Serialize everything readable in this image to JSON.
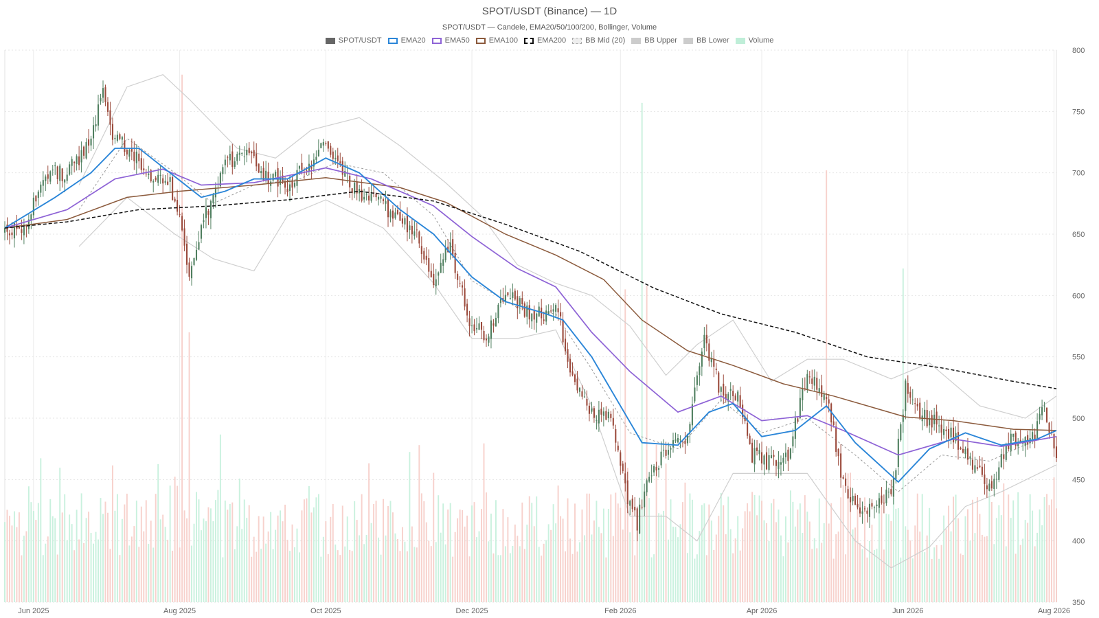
{
  "chart_data": {
    "type": "candlestick",
    "title": "SPOT/USDT (Binance) — 1D",
    "subtitle": "SPOT/USDT — Candele, EMA20/50/100/200, Bollinger, Volume",
    "legend_placement": "top-center",
    "legend": [
      {
        "label": "SPOT/USDT",
        "color": "#666666",
        "style": "solid-fill"
      },
      {
        "label": "EMA20",
        "color": "#2b86d8",
        "style": "outline"
      },
      {
        "label": "EMA50",
        "color": "#8e63d6",
        "style": "outline"
      },
      {
        "label": "EMA100",
        "color": "#8b5a3c",
        "style": "outline"
      },
      {
        "label": "EMA200",
        "color": "#111111",
        "style": "dashed"
      },
      {
        "label": "BB Mid (20)",
        "color": "#aaaaaa",
        "style": "dotted"
      },
      {
        "label": "BB Upper",
        "color": "#cccccc",
        "style": "solid-fill"
      },
      {
        "label": "BB Lower",
        "color": "#cccccc",
        "style": "solid-fill"
      },
      {
        "label": "Volume",
        "color": "#bfeed8",
        "style": "solid-fill"
      }
    ],
    "x_axis": {
      "type": "date",
      "range": [
        "2025-05-20",
        "2026-08-02"
      ],
      "ticks": [
        {
          "date": "2025-06-01",
          "label": "Jun 2025"
        },
        {
          "date": "2025-08-01",
          "label": "Aug 2025"
        },
        {
          "date": "2025-10-01",
          "label": "Oct 2025"
        },
        {
          "date": "2025-12-01",
          "label": "Dec 2025"
        },
        {
          "date": "2026-02-01",
          "label": "Feb 2026"
        },
        {
          "date": "2026-04-01",
          "label": "Apr 2026"
        },
        {
          "date": "2026-06-01",
          "label": "Jun 2026"
        },
        {
          "date": "2026-08-01",
          "label": "Aug 2026"
        }
      ]
    },
    "y_axis": {
      "position": "right",
      "range": [
        350,
        800
      ],
      "ticks": [
        350,
        400,
        450,
        500,
        550,
        600,
        650,
        700,
        750,
        800
      ]
    },
    "grid": true,
    "colors": {
      "up": "#4f7f5f",
      "down": "#9b4a3c",
      "volume_up": "#bfeed8",
      "volume_down": "#f6c9c3"
    },
    "price_path": [
      [
        "2025-05-20",
        655
      ],
      [
        "2025-05-28",
        650
      ],
      [
        "2025-06-05",
        700
      ],
      [
        "2025-06-15",
        700
      ],
      [
        "2025-06-25",
        725
      ],
      [
        "2025-06-30",
        775
      ],
      [
        "2025-07-03",
        735
      ],
      [
        "2025-07-10",
        720
      ],
      [
        "2025-07-20",
        700
      ],
      [
        "2025-07-28",
        690
      ],
      [
        "2025-08-01",
        660
      ],
      [
        "2025-08-05",
        620
      ],
      [
        "2025-08-12",
        665
      ],
      [
        "2025-08-20",
        705
      ],
      [
        "2025-08-28",
        720
      ],
      [
        "2025-09-05",
        700
      ],
      [
        "2025-09-15",
        690
      ],
      [
        "2025-09-25",
        710
      ],
      [
        "2025-10-02",
        725
      ],
      [
        "2025-10-08",
        700
      ],
      [
        "2025-10-15",
        680
      ],
      [
        "2025-10-25",
        675
      ],
      [
        "2025-11-01",
        660
      ],
      [
        "2025-11-08",
        650
      ],
      [
        "2025-11-15",
        615
      ],
      [
        "2025-11-22",
        640
      ],
      [
        "2025-11-30",
        580
      ],
      [
        "2025-12-07",
        565
      ],
      [
        "2025-12-15",
        605
      ],
      [
        "2025-12-25",
        585
      ],
      [
        "2026-01-01",
        585
      ],
      [
        "2026-01-05",
        595
      ],
      [
        "2026-01-12",
        530
      ],
      [
        "2026-01-20",
        505
      ],
      [
        "2026-01-28",
        500
      ],
      [
        "2026-02-03",
        440
      ],
      [
        "2026-02-08",
        415
      ],
      [
        "2026-02-12",
        450
      ],
      [
        "2026-02-20",
        475
      ],
      [
        "2026-02-28",
        480
      ],
      [
        "2026-03-08",
        565
      ],
      [
        "2026-03-15",
        520
      ],
      [
        "2026-03-22",
        515
      ],
      [
        "2026-03-28",
        470
      ],
      [
        "2026-04-03",
        465
      ],
      [
        "2026-04-12",
        470
      ],
      [
        "2026-04-20",
        535
      ],
      [
        "2026-04-28",
        520
      ],
      [
        "2026-05-05",
        445
      ],
      [
        "2026-05-12",
        420
      ],
      [
        "2026-05-20",
        430
      ],
      [
        "2026-05-26",
        445
      ],
      [
        "2026-05-31",
        525
      ],
      [
        "2026-06-08",
        500
      ],
      [
        "2026-06-18",
        490
      ],
      [
        "2026-06-28",
        460
      ],
      [
        "2026-07-05",
        445
      ],
      [
        "2026-07-15",
        485
      ],
      [
        "2026-07-22",
        480
      ],
      [
        "2026-07-28",
        510
      ],
      [
        "2026-08-02",
        470
      ]
    ],
    "ema20": [
      [
        "2025-05-20",
        655
      ],
      [
        "2025-06-10",
        680
      ],
      [
        "2025-06-25",
        700
      ],
      [
        "2025-07-05",
        720
      ],
      [
        "2025-07-15",
        720
      ],
      [
        "2025-07-28",
        700
      ],
      [
        "2025-08-10",
        680
      ],
      [
        "2025-08-20",
        685
      ],
      [
        "2025-09-01",
        695
      ],
      [
        "2025-09-15",
        695
      ],
      [
        "2025-10-01",
        712
      ],
      [
        "2025-10-15",
        700
      ],
      [
        "2025-11-01",
        670
      ],
      [
        "2025-11-15",
        650
      ],
      [
        "2025-12-01",
        615
      ],
      [
        "2025-12-15",
        595
      ],
      [
        "2026-01-01",
        585
      ],
      [
        "2026-01-08",
        580
      ],
      [
        "2026-01-20",
        550
      ],
      [
        "2026-02-01",
        510
      ],
      [
        "2026-02-10",
        480
      ],
      [
        "2026-02-25",
        478
      ],
      [
        "2026-03-10",
        505
      ],
      [
        "2026-03-20",
        512
      ],
      [
        "2026-04-01",
        485
      ],
      [
        "2026-04-15",
        490
      ],
      [
        "2026-04-28",
        510
      ],
      [
        "2026-05-10",
        480
      ],
      [
        "2026-05-28",
        448
      ],
      [
        "2026-06-10",
        475
      ],
      [
        "2026-06-25",
        488
      ],
      [
        "2026-07-10",
        478
      ],
      [
        "2026-07-25",
        483
      ],
      [
        "2026-08-02",
        490
      ]
    ],
    "ema50": [
      [
        "2025-05-20",
        655
      ],
      [
        "2025-06-15",
        670
      ],
      [
        "2025-07-05",
        695
      ],
      [
        "2025-07-25",
        703
      ],
      [
        "2025-08-10",
        690
      ],
      [
        "2025-09-01",
        692
      ],
      [
        "2025-10-01",
        704
      ],
      [
        "2025-10-20",
        695
      ],
      [
        "2025-11-15",
        673
      ],
      [
        "2025-12-01",
        648
      ],
      [
        "2025-12-20",
        622
      ],
      [
        "2026-01-05",
        607
      ],
      [
        "2026-01-20",
        570
      ],
      [
        "2026-02-05",
        538
      ],
      [
        "2026-02-25",
        505
      ],
      [
        "2026-03-15",
        518
      ],
      [
        "2026-04-01",
        498
      ],
      [
        "2026-04-20",
        502
      ],
      [
        "2026-05-05",
        490
      ],
      [
        "2026-05-28",
        470
      ],
      [
        "2026-06-20",
        483
      ],
      [
        "2026-07-10",
        477
      ],
      [
        "2026-08-02",
        485
      ]
    ],
    "ema100": [
      [
        "2025-05-20",
        655
      ],
      [
        "2025-06-15",
        662
      ],
      [
        "2025-07-10",
        680
      ],
      [
        "2025-08-01",
        685
      ],
      [
        "2025-09-01",
        690
      ],
      [
        "2025-10-01",
        696
      ],
      [
        "2025-11-01",
        688
      ],
      [
        "2025-11-20",
        676
      ],
      [
        "2025-12-15",
        650
      ],
      [
        "2026-01-05",
        633
      ],
      [
        "2026-01-25",
        613
      ],
      [
        "2026-02-10",
        580
      ],
      [
        "2026-03-01",
        555
      ],
      [
        "2026-03-20",
        543
      ],
      [
        "2026-04-10",
        528
      ],
      [
        "2026-05-01",
        518
      ],
      [
        "2026-05-31",
        501
      ],
      [
        "2026-06-20",
        498
      ],
      [
        "2026-07-15",
        491
      ],
      [
        "2026-08-02",
        490
      ]
    ],
    "ema200": [
      [
        "2025-05-20",
        655
      ],
      [
        "2025-06-15",
        660
      ],
      [
        "2025-07-15",
        670
      ],
      [
        "2025-08-15",
        673
      ],
      [
        "2025-09-15",
        678
      ],
      [
        "2025-10-15",
        685
      ],
      [
        "2025-11-15",
        677
      ],
      [
        "2025-12-15",
        658
      ],
      [
        "2026-01-15",
        636
      ],
      [
        "2026-02-15",
        606
      ],
      [
        "2026-03-15",
        585
      ],
      [
        "2026-04-15",
        570
      ],
      [
        "2026-05-15",
        550
      ],
      [
        "2026-06-15",
        541
      ],
      [
        "2026-07-15",
        530
      ],
      [
        "2026-08-02",
        524
      ]
    ],
    "bb_mid": [
      [
        "2025-06-20",
        670
      ],
      [
        "2025-07-10",
        728
      ],
      [
        "2025-07-30",
        700
      ],
      [
        "2025-08-15",
        675
      ],
      [
        "2025-09-01",
        690
      ],
      [
        "2025-09-20",
        695
      ],
      [
        "2025-10-05",
        708
      ],
      [
        "2025-10-25",
        700
      ],
      [
        "2025-11-15",
        665
      ],
      [
        "2025-12-01",
        612
      ],
      [
        "2025-12-20",
        590
      ],
      [
        "2026-01-05",
        585
      ],
      [
        "2026-01-20",
        540
      ],
      [
        "2026-02-05",
        488
      ],
      [
        "2026-02-25",
        475
      ],
      [
        "2026-03-15",
        515
      ],
      [
        "2026-04-01",
        488
      ],
      [
        "2026-04-20",
        500
      ],
      [
        "2026-05-10",
        470
      ],
      [
        "2026-05-28",
        440
      ],
      [
        "2026-06-15",
        470
      ],
      [
        "2026-07-05",
        465
      ],
      [
        "2026-08-02",
        490
      ]
    ],
    "bb_upper": [
      [
        "2025-06-20",
        690
      ],
      [
        "2025-07-10",
        770
      ],
      [
        "2025-07-25",
        780
      ],
      [
        "2025-08-05",
        760
      ],
      [
        "2025-08-25",
        720
      ],
      [
        "2025-09-10",
        712
      ],
      [
        "2025-09-25",
        735
      ],
      [
        "2025-10-15",
        745
      ],
      [
        "2025-11-01",
        722
      ],
      [
        "2025-11-20",
        692
      ],
      [
        "2025-12-05",
        665
      ],
      [
        "2025-12-20",
        625
      ],
      [
        "2026-01-05",
        610
      ],
      [
        "2026-01-20",
        600
      ],
      [
        "2026-02-05",
        575
      ],
      [
        "2026-02-20",
        535
      ],
      [
        "2026-03-05",
        560
      ],
      [
        "2026-03-20",
        580
      ],
      [
        "2026-04-05",
        530
      ],
      [
        "2026-04-20",
        548
      ],
      [
        "2026-05-05",
        548
      ],
      [
        "2026-05-25",
        532
      ],
      [
        "2026-06-10",
        545
      ],
      [
        "2026-07-01",
        510
      ],
      [
        "2026-07-20",
        500
      ],
      [
        "2026-08-02",
        518
      ]
    ],
    "bb_lower": [
      [
        "2025-06-20",
        640
      ],
      [
        "2025-07-10",
        680
      ],
      [
        "2025-07-30",
        650
      ],
      [
        "2025-08-15",
        630
      ],
      [
        "2025-09-01",
        620
      ],
      [
        "2025-09-15",
        665
      ],
      [
        "2025-10-01",
        678
      ],
      [
        "2025-10-25",
        655
      ],
      [
        "2025-11-15",
        610
      ],
      [
        "2025-12-01",
        565
      ],
      [
        "2025-12-20",
        565
      ],
      [
        "2026-01-05",
        572
      ],
      [
        "2026-01-20",
        510
      ],
      [
        "2026-02-05",
        420
      ],
      [
        "2026-02-20",
        420
      ],
      [
        "2026-03-05",
        400
      ],
      [
        "2026-03-20",
        455
      ],
      [
        "2026-04-05",
        455
      ],
      [
        "2026-04-20",
        455
      ],
      [
        "2026-05-10",
        400
      ],
      [
        "2026-05-25",
        378
      ],
      [
        "2026-06-10",
        395
      ],
      [
        "2026-06-25",
        428
      ],
      [
        "2026-07-10",
        440
      ],
      [
        "2026-08-02",
        462
      ]
    ],
    "volume_spikes": [
      [
        "2025-08-02",
        780,
        "down"
      ],
      [
        "2025-08-05",
        570,
        "down"
      ],
      [
        "2026-02-03",
        605,
        "down"
      ],
      [
        "2026-02-10",
        757,
        "up"
      ],
      [
        "2026-02-12",
        608,
        "down"
      ],
      [
        "2026-04-28",
        702,
        "down"
      ],
      [
        "2026-05-30",
        622,
        "up"
      ]
    ]
  }
}
